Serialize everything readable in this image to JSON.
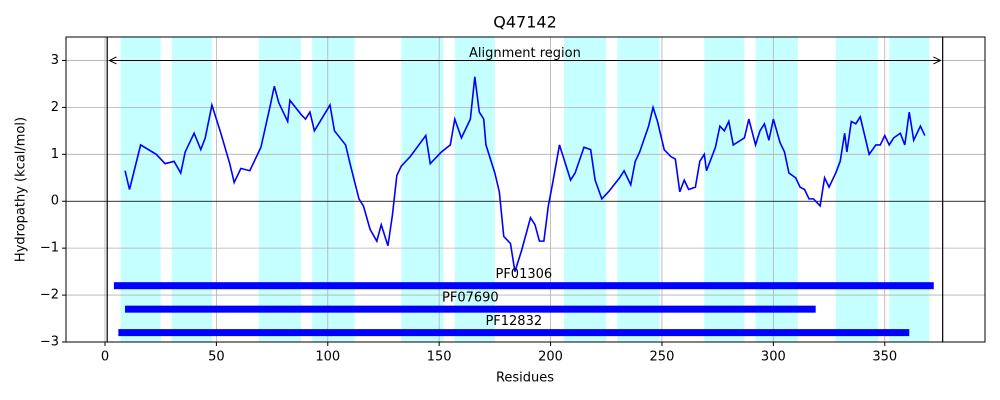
{
  "chart_data": {
    "type": "line",
    "title": "Q47142",
    "xlabel": "Residues",
    "ylabel": "Hydropathy (kcal/mol)",
    "color": "#0000ff",
    "x": [
      9,
      11,
      16,
      23,
      27,
      31,
      34,
      36,
      40,
      43,
      45,
      48,
      52,
      56,
      58,
      61,
      65,
      70,
      74,
      76,
      78,
      82,
      83,
      88,
      90,
      92,
      94,
      101,
      103,
      108,
      110,
      114,
      116,
      119,
      122,
      124,
      127,
      129,
      131,
      133,
      137,
      144,
      146,
      151,
      155,
      157,
      160,
      164,
      166,
      168,
      170,
      171,
      175,
      177,
      179,
      182,
      184,
      187,
      191,
      193,
      195,
      197,
      199,
      201,
      204,
      206,
      209,
      211,
      215,
      218,
      220,
      223,
      226,
      231,
      233,
      236,
      238,
      240,
      244,
      246,
      248,
      251,
      254,
      256,
      258,
      260,
      262,
      265,
      267,
      269,
      270,
      274,
      276,
      278,
      280,
      282,
      287,
      289,
      292,
      294,
      296,
      298,
      300,
      303,
      305,
      307,
      310,
      312,
      314,
      316,
      318,
      321,
      323,
      325,
      328,
      330,
      332,
      333,
      335,
      337,
      339,
      341,
      343,
      346,
      348,
      350,
      352,
      354,
      357,
      359,
      361,
      363,
      366,
      368
    ],
    "values": [
      0.65,
      0.25,
      1.2,
      1.0,
      0.8,
      0.85,
      0.6,
      1.05,
      1.45,
      1.1,
      1.35,
      2.05,
      1.45,
      0.8,
      0.4,
      0.7,
      0.65,
      1.15,
      2.0,
      2.45,
      2.1,
      1.7,
      2.15,
      1.85,
      1.75,
      1.9,
      1.5,
      2.05,
      1.5,
      1.2,
      0.8,
      0.05,
      -0.1,
      -0.6,
      -0.85,
      -0.5,
      -0.95,
      -0.3,
      0.55,
      0.75,
      0.95,
      1.4,
      0.8,
      1.05,
      1.2,
      1.75,
      1.35,
      1.75,
      2.65,
      1.9,
      1.75,
      1.2,
      0.6,
      0.2,
      -0.75,
      -0.9,
      -1.5,
      -1.05,
      -0.35,
      -0.5,
      -0.85,
      -0.85,
      -0.1,
      0.4,
      1.2,
      0.9,
      0.45,
      0.6,
      1.15,
      1.1,
      0.45,
      0.05,
      0.2,
      0.5,
      0.65,
      0.35,
      0.85,
      1.05,
      1.6,
      2.0,
      1.7,
      1.1,
      0.95,
      0.9,
      0.2,
      0.45,
      0.25,
      0.3,
      0.85,
      1.0,
      0.65,
      1.15,
      1.6,
      1.5,
      1.7,
      1.2,
      1.35,
      1.75,
      1.2,
      1.5,
      1.65,
      1.3,
      1.75,
      1.25,
      1.05,
      0.6,
      0.5,
      0.3,
      0.25,
      0.05,
      0.05,
      -0.1,
      0.5,
      0.3,
      0.6,
      0.85,
      1.45,
      1.05,
      1.7,
      1.65,
      1.8,
      1.4,
      1.0,
      1.2,
      1.2,
      1.4,
      1.2,
      1.35,
      1.45,
      1.2,
      1.9,
      1.3,
      1.6,
      1.4
    ],
    "bands": [
      [
        7,
        25
      ],
      [
        30,
        48
      ],
      [
        69,
        88
      ],
      [
        93,
        112
      ],
      [
        133,
        152
      ],
      [
        157,
        175
      ],
      [
        206,
        225
      ],
      [
        230,
        249
      ],
      [
        269,
        287
      ],
      [
        292,
        311
      ],
      [
        328,
        347
      ],
      [
        352,
        370
      ]
    ],
    "band_color": "#c6ffff",
    "boundaries": [
      1,
      376
    ],
    "alignment": {
      "label": "Alignment region",
      "start": 2,
      "end": 375,
      "y": 3
    },
    "domains": [
      {
        "label": "PF01306",
        "start": 4,
        "end": 372,
        "y": -1.8
      },
      {
        "label": "PF07690",
        "start": 9,
        "end": 319,
        "y": -2.3
      },
      {
        "label": "PF12832",
        "start": 6,
        "end": 361,
        "y": -2.8
      }
    ],
    "domain_color": "#0000ff",
    "xlim": [
      -17.5,
      395
    ],
    "ylim": [
      -3,
      3.5
    ],
    "xticks": [
      0,
      50,
      100,
      150,
      200,
      250,
      300,
      350
    ],
    "yticks": [
      {
        "value": -3,
        "label": "−3"
      },
      {
        "value": -2,
        "label": "−2"
      },
      {
        "value": -1,
        "label": "−1"
      },
      0,
      1,
      2,
      3
    ],
    "grid": true,
    "zero_line": true
  }
}
